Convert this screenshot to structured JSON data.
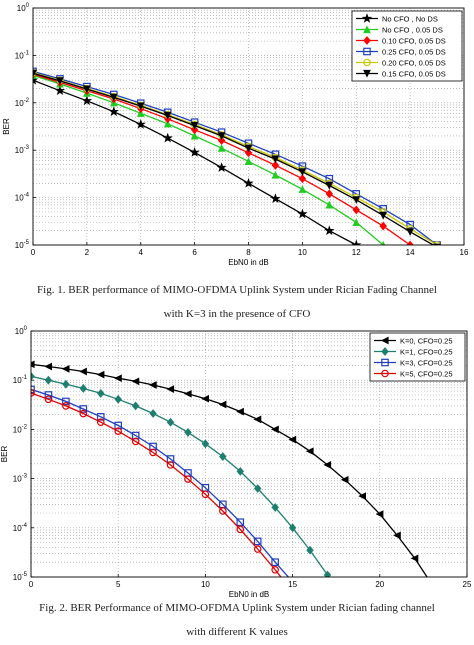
{
  "figures": [
    {
      "caption": [
        "Fig. 1. BER performance of MIMO-OFDMA Uplink System under Rician Fading Channel",
        "with K=3 in the presence of CFO"
      ]
    },
    {
      "caption": [
        "Fig. 2. BER Performance of MIMO-OFDMA Uplink System under Rician fading channel",
        "with different K values"
      ]
    }
  ],
  "chart_data": [
    {
      "type": "line",
      "xlabel": "EbN0 in dB",
      "ylabel": "BER",
      "xlim": [
        0,
        16
      ],
      "ylim": [
        1e-05,
        1
      ],
      "yscale": "log",
      "xticks": [
        0,
        2,
        4,
        6,
        8,
        10,
        12,
        14,
        16
      ],
      "grid": true,
      "legend_position": "top-right",
      "series": [
        {
          "name": "No CFO  , No  DS",
          "color": "#000000",
          "marker": "star",
          "x": [
            0,
            1,
            2,
            3,
            4,
            5,
            6,
            7,
            8,
            9,
            10,
            11,
            12
          ],
          "y": [
            0.03,
            0.018,
            0.011,
            0.0065,
            0.0035,
            0.0018,
            0.0009,
            0.00043,
            0.0002,
            9.5e-05,
            4.5e-05,
            2e-05,
            1e-05
          ]
        },
        {
          "name": "No CFO  , 0.05 DS",
          "color": "#22cc22",
          "marker": "triangle-up",
          "x": [
            0,
            1,
            2,
            3,
            4,
            5,
            6,
            7,
            8,
            9,
            10,
            11,
            12,
            13
          ],
          "y": [
            0.038,
            0.025,
            0.016,
            0.01,
            0.006,
            0.0036,
            0.002,
            0.0011,
            0.00058,
            0.0003,
            0.00015,
            7e-05,
            3e-05,
            1e-05
          ]
        },
        {
          "name": "0.10 CFO, 0.05 DS",
          "color": "#ff0000",
          "marker": "diamond",
          "x": [
            0,
            1,
            2,
            3,
            4,
            5,
            6,
            7,
            8,
            9,
            10,
            11,
            12,
            13,
            14
          ],
          "y": [
            0.04,
            0.027,
            0.018,
            0.012,
            0.0075,
            0.0046,
            0.0027,
            0.0016,
            0.00088,
            0.00048,
            0.00025,
            0.00012,
            5.5e-05,
            2.5e-05,
            1e-05
          ]
        },
        {
          "name": "0.25 CFO, 0.05 DS",
          "color": "#1f3fbf",
          "marker": "square",
          "x": [
            0,
            1,
            2,
            3,
            4,
            5,
            6,
            7,
            8,
            9,
            10,
            11,
            12,
            13,
            14,
            15
          ],
          "y": [
            0.046,
            0.032,
            0.022,
            0.015,
            0.0098,
            0.0063,
            0.0039,
            0.0024,
            0.0014,
            0.00082,
            0.00046,
            0.00025,
            0.00012,
            5.8e-05,
            2.7e-05,
            1e-05
          ]
        },
        {
          "name": "0.20 CFO, 0.05 DS",
          "color": "#c8c800",
          "marker": "circle",
          "x": [
            0,
            1,
            2,
            3,
            4,
            5,
            6,
            7,
            8,
            9,
            10,
            11,
            12,
            13,
            14,
            15
          ],
          "y": [
            0.043,
            0.03,
            0.02,
            0.0135,
            0.0088,
            0.0056,
            0.0035,
            0.0021,
            0.0012,
            0.0007,
            0.00038,
            0.0002,
            0.0001,
            5e-05,
            2.2e-05,
            1e-05
          ]
        },
        {
          "name": "0.15 CFO, 0.05 DS",
          "color": "#000000",
          "marker": "triangle-down",
          "x": [
            0,
            1,
            2,
            3,
            4,
            5,
            6,
            7,
            8,
            9,
            10,
            11,
            12,
            13,
            14,
            15
          ],
          "y": [
            0.042,
            0.029,
            0.0195,
            0.013,
            0.0085,
            0.0054,
            0.0033,
            0.002,
            0.0011,
            0.00065,
            0.00035,
            0.00018,
            9e-05,
            4.2e-05,
            1.9e-05,
            9e-06
          ]
        }
      ]
    },
    {
      "type": "line",
      "xlabel": "EbN0 in dB",
      "ylabel": "BER",
      "xlim": [
        0,
        25
      ],
      "ylim": [
        1e-05,
        1
      ],
      "yscale": "log",
      "xticks": [
        0,
        5,
        10,
        15,
        20,
        25
      ],
      "grid": true,
      "legend_position": "top-right",
      "series": [
        {
          "name": "K=0, CFO=0.25",
          "color": "#000000",
          "marker": "triangle-left",
          "x": [
            0,
            1,
            2,
            3,
            4,
            5,
            6,
            7,
            8,
            9,
            10,
            11,
            12,
            13,
            14,
            15,
            16,
            17,
            18,
            19,
            20,
            21,
            22,
            23
          ],
          "y": [
            0.21,
            0.19,
            0.17,
            0.15,
            0.13,
            0.11,
            0.095,
            0.08,
            0.066,
            0.053,
            0.042,
            0.032,
            0.023,
            0.016,
            0.01,
            0.0062,
            0.0036,
            0.0019,
            0.00095,
            0.00044,
            0.00019,
            7e-05,
            2.4e-05,
            7e-06
          ]
        },
        {
          "name": "K=1, CFO=0.25",
          "color": "#1f7f6f",
          "marker": "diamond",
          "x": [
            0,
            1,
            2,
            3,
            4,
            5,
            6,
            7,
            8,
            9,
            10,
            11,
            12,
            13,
            14,
            15,
            16,
            17
          ],
          "y": [
            0.12,
            0.1,
            0.083,
            0.068,
            0.054,
            0.041,
            0.03,
            0.021,
            0.014,
            0.0087,
            0.0051,
            0.0028,
            0.0014,
            0.00063,
            0.00026,
            0.0001,
            3.5e-05,
            1.1e-05
          ]
        },
        {
          "name": "K=3, CFO=0.25",
          "color": "#1f3fbf",
          "marker": "square",
          "x": [
            0,
            1,
            2,
            3,
            4,
            5,
            6,
            7,
            8,
            9,
            10,
            11,
            12,
            13,
            14,
            15,
            16
          ],
          "y": [
            0.065,
            0.05,
            0.037,
            0.026,
            0.018,
            0.012,
            0.0075,
            0.0045,
            0.0025,
            0.0013,
            0.00065,
            0.0003,
            0.00013,
            5.3e-05,
            2e-05,
            8e-06,
            3e-06
          ]
        },
        {
          "name": "K=5, CFO=0.25",
          "color": "#e00000",
          "marker": "circle",
          "x": [
            0,
            1,
            2,
            3,
            4,
            5,
            6,
            7,
            8,
            9,
            10,
            11,
            12,
            13,
            14,
            15
          ],
          "y": [
            0.055,
            0.041,
            0.03,
            0.021,
            0.014,
            0.0092,
            0.0057,
            0.0034,
            0.0019,
            0.00098,
            0.00048,
            0.00022,
            9.3e-05,
            3.7e-05,
            1.4e-05,
            5e-06
          ]
        }
      ]
    }
  ]
}
